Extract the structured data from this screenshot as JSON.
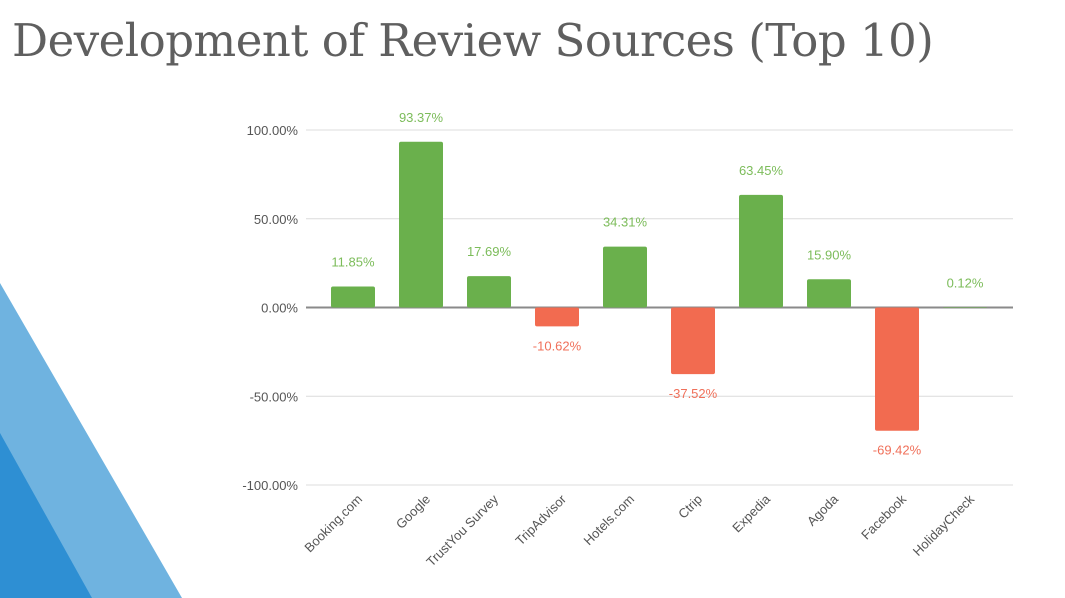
{
  "slide": {
    "title": "Development of Review Sources (Top 10)"
  },
  "colors": {
    "positive": "#6ab04c",
    "negative": "#f26b50",
    "positive_label": "#7cbc5a",
    "negative_label": "#f0705a",
    "grid": "#dcdcdc",
    "zero": "#8a8a8a",
    "deco_light": "#6fb3e0",
    "deco_dark": "#2e8fd3"
  },
  "chart_data": {
    "type": "bar",
    "title": "",
    "xlabel": "",
    "ylabel": "",
    "ylim": [
      -100,
      100
    ],
    "yticks": [
      100,
      50,
      0,
      -50,
      -100
    ],
    "ytick_labels": [
      "100.00%",
      "50.00%",
      "0.00%",
      "-50.00%",
      "-100.00%"
    ],
    "grid": true,
    "categories": [
      "Booking.com",
      "Google",
      "TrustYou Survey",
      "TripAdvisor",
      "Hotels.com",
      "Ctrip",
      "Expedia",
      "Agoda",
      "Facebook",
      "HolidayCheck"
    ],
    "values": [
      11.85,
      93.37,
      17.69,
      -10.62,
      34.31,
      -37.52,
      63.45,
      15.9,
      -69.42,
      0.12
    ],
    "data_labels": [
      "11.85%",
      "93.37%",
      "17.69%",
      "-10.62%",
      "34.31%",
      "-37.52%",
      "63.45%",
      "15.90%",
      "-69.42%",
      "0.12%"
    ]
  }
}
